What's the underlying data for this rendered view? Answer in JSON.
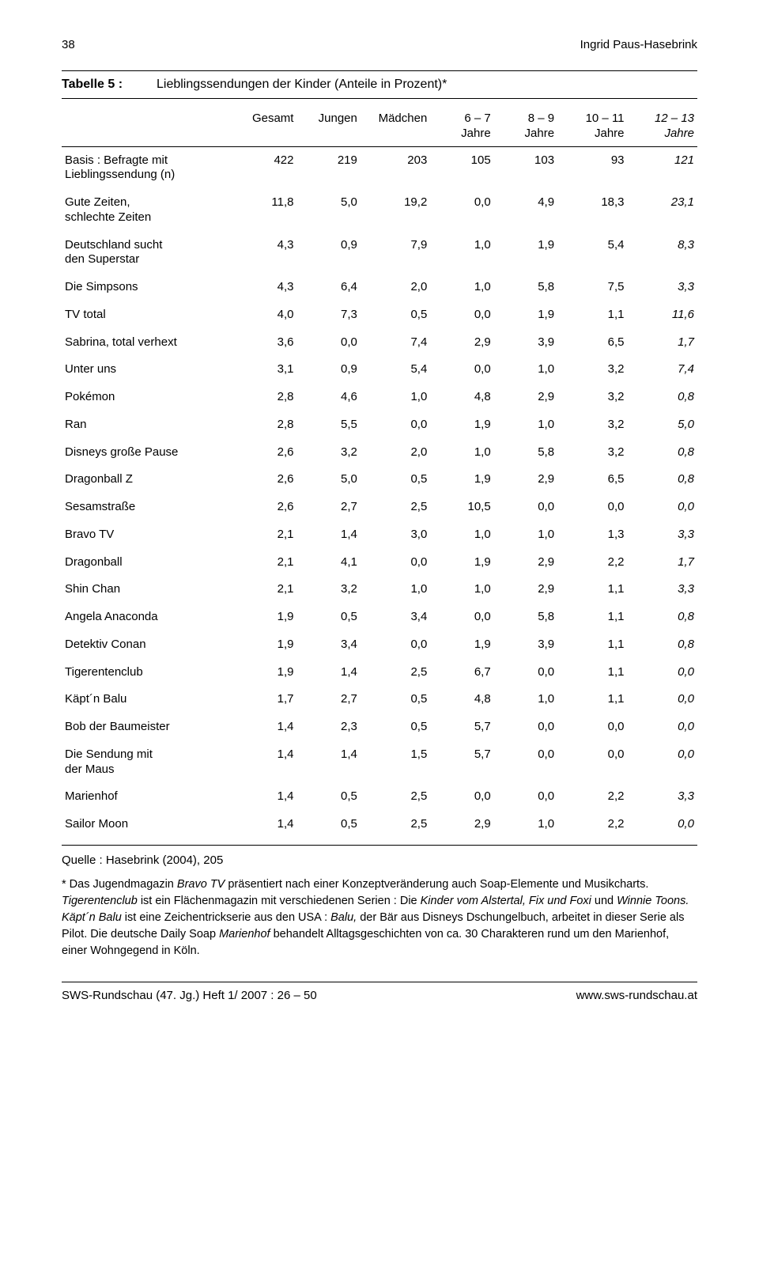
{
  "page_number": "38",
  "author": "Ingrid Paus-Hasebrink",
  "table_number": "Tabelle 5 :",
  "table_title": "Lieblingssendungen der Kinder (Anteile in Prozent)*",
  "columns": [
    "",
    "Gesamt",
    "Jungen",
    "Mädchen",
    "6 – 7\nJahre",
    "8 – 9\nJahre",
    "10 – 11\nJahre",
    "12 – 13\nJahre"
  ],
  "rows": [
    {
      "label": "Basis : Befragte mit\nLieblingssendung (n)",
      "v": [
        "422",
        "219",
        "203",
        "105",
        "103",
        "93",
        "121"
      ]
    },
    {
      "label": "Gute Zeiten,\nschlechte Zeiten",
      "v": [
        "11,8",
        "5,0",
        "19,2",
        "0,0",
        "4,9",
        "18,3",
        "23,1"
      ]
    },
    {
      "label": "Deutschland sucht\nden Superstar",
      "v": [
        "4,3",
        "0,9",
        "7,9",
        "1,0",
        "1,9",
        "5,4",
        "8,3"
      ]
    },
    {
      "label": "Die Simpsons",
      "v": [
        "4,3",
        "6,4",
        "2,0",
        "1,0",
        "5,8",
        "7,5",
        "3,3"
      ]
    },
    {
      "label": "TV total",
      "v": [
        "4,0",
        "7,3",
        "0,5",
        "0,0",
        "1,9",
        "1,1",
        "11,6"
      ]
    },
    {
      "label": "Sabrina, total verhext",
      "v": [
        "3,6",
        "0,0",
        "7,4",
        "2,9",
        "3,9",
        "6,5",
        "1,7"
      ]
    },
    {
      "label": "Unter uns",
      "v": [
        "3,1",
        "0,9",
        "5,4",
        "0,0",
        "1,0",
        "3,2",
        "7,4"
      ]
    },
    {
      "label": "Pokémon",
      "v": [
        "2,8",
        "4,6",
        "1,0",
        "4,8",
        "2,9",
        "3,2",
        "0,8"
      ]
    },
    {
      "label": "Ran",
      "v": [
        "2,8",
        "5,5",
        "0,0",
        "1,9",
        "1,0",
        "3,2",
        "5,0"
      ]
    },
    {
      "label": "Disneys große Pause",
      "v": [
        "2,6",
        "3,2",
        "2,0",
        "1,0",
        "5,8",
        "3,2",
        "0,8"
      ]
    },
    {
      "label": "Dragonball Z",
      "v": [
        "2,6",
        "5,0",
        "0,5",
        "1,9",
        "2,9",
        "6,5",
        "0,8"
      ]
    },
    {
      "label": "Sesamstraße",
      "v": [
        "2,6",
        "2,7",
        "2,5",
        "10,5",
        "0,0",
        "0,0",
        "0,0"
      ]
    },
    {
      "label": "Bravo TV",
      "v": [
        "2,1",
        "1,4",
        "3,0",
        "1,0",
        "1,0",
        "1,3",
        "3,3"
      ]
    },
    {
      "label": "Dragonball",
      "v": [
        "2,1",
        "4,1",
        "0,0",
        "1,9",
        "2,9",
        "2,2",
        "1,7"
      ]
    },
    {
      "label": "Shin Chan",
      "v": [
        "2,1",
        "3,2",
        "1,0",
        "1,0",
        "2,9",
        "1,1",
        "3,3"
      ]
    },
    {
      "label": "Angela Anaconda",
      "v": [
        "1,9",
        "0,5",
        "3,4",
        "0,0",
        "5,8",
        "1,1",
        "0,8"
      ]
    },
    {
      "label": "Detektiv Conan",
      "v": [
        "1,9",
        "3,4",
        "0,0",
        "1,9",
        "3,9",
        "1,1",
        "0,8"
      ]
    },
    {
      "label": "Tigerentenclub",
      "v": [
        "1,9",
        "1,4",
        "2,5",
        "6,7",
        "0,0",
        "1,1",
        "0,0"
      ]
    },
    {
      "label": "Käpt´n Balu",
      "v": [
        "1,7",
        "2,7",
        "0,5",
        "4,8",
        "1,0",
        "1,1",
        "0,0"
      ]
    },
    {
      "label": "Bob der Baumeister",
      "v": [
        "1,4",
        "2,3",
        "0,5",
        "5,7",
        "0,0",
        "0,0",
        "0,0"
      ]
    },
    {
      "label": "Die Sendung mit\nder Maus",
      "v": [
        "1,4",
        "1,4",
        "1,5",
        "5,7",
        "0,0",
        "0,0",
        "0,0"
      ]
    },
    {
      "label": "Marienhof",
      "v": [
        "1,4",
        "0,5",
        "2,5",
        "0,0",
        "0,0",
        "2,2",
        "3,3"
      ]
    },
    {
      "label": "Sailor Moon",
      "v": [
        "1,4",
        "0,5",
        "2,5",
        "2,9",
        "1,0",
        "2,2",
        "0,0"
      ]
    }
  ],
  "source": "Quelle : Hasebrink (2004), 205",
  "footnote_prefix": "* Das Jugendmagazin ",
  "footnote_html": "<em>Bravo TV</em> präsentiert nach einer Konzeptveränderung auch Soap-Elemente und Musikcharts. <em>Tigerentenclub</em> ist ein Flächenmagazin mit verschiedenen Serien : Die <em>Kinder vom Alstertal, Fix und Foxi</em> und <em>Winnie Toons. Käpt´n Balu</em> ist eine Zeichentrickserie aus den USA : <em>Balu,</em> der Bär aus Disneys Dschungelbuch, arbeitet in dieser Serie als Pilot. Die deutsche Daily Soap <em>Marienhof</em> behandelt Alltagsgeschichten von ca. 30 Charakteren rund um den Marienhof, einer Wohngegend in Köln.",
  "footer_left": "SWS-Rundschau (47. Jg.) Heft 1/ 2007 : 26 – 50",
  "footer_right": "www.sws-rundschau.at",
  "col_widths": [
    "27%",
    "10%",
    "10%",
    "11%",
    "10%",
    "10%",
    "11%",
    "11%"
  ],
  "italic_col_index": 7,
  "font_color": "#000000",
  "bg_color": "#ffffff"
}
